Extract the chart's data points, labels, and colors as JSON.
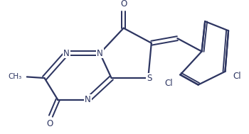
{
  "bg_color": "#ffffff",
  "line_color": "#2d3561",
  "line_width": 1.6,
  "font_size": 8.5,
  "fig_width": 3.5,
  "fig_height": 1.89,
  "xlim": [
    0,
    10
  ],
  "ylim": [
    0,
    5.4
  ]
}
